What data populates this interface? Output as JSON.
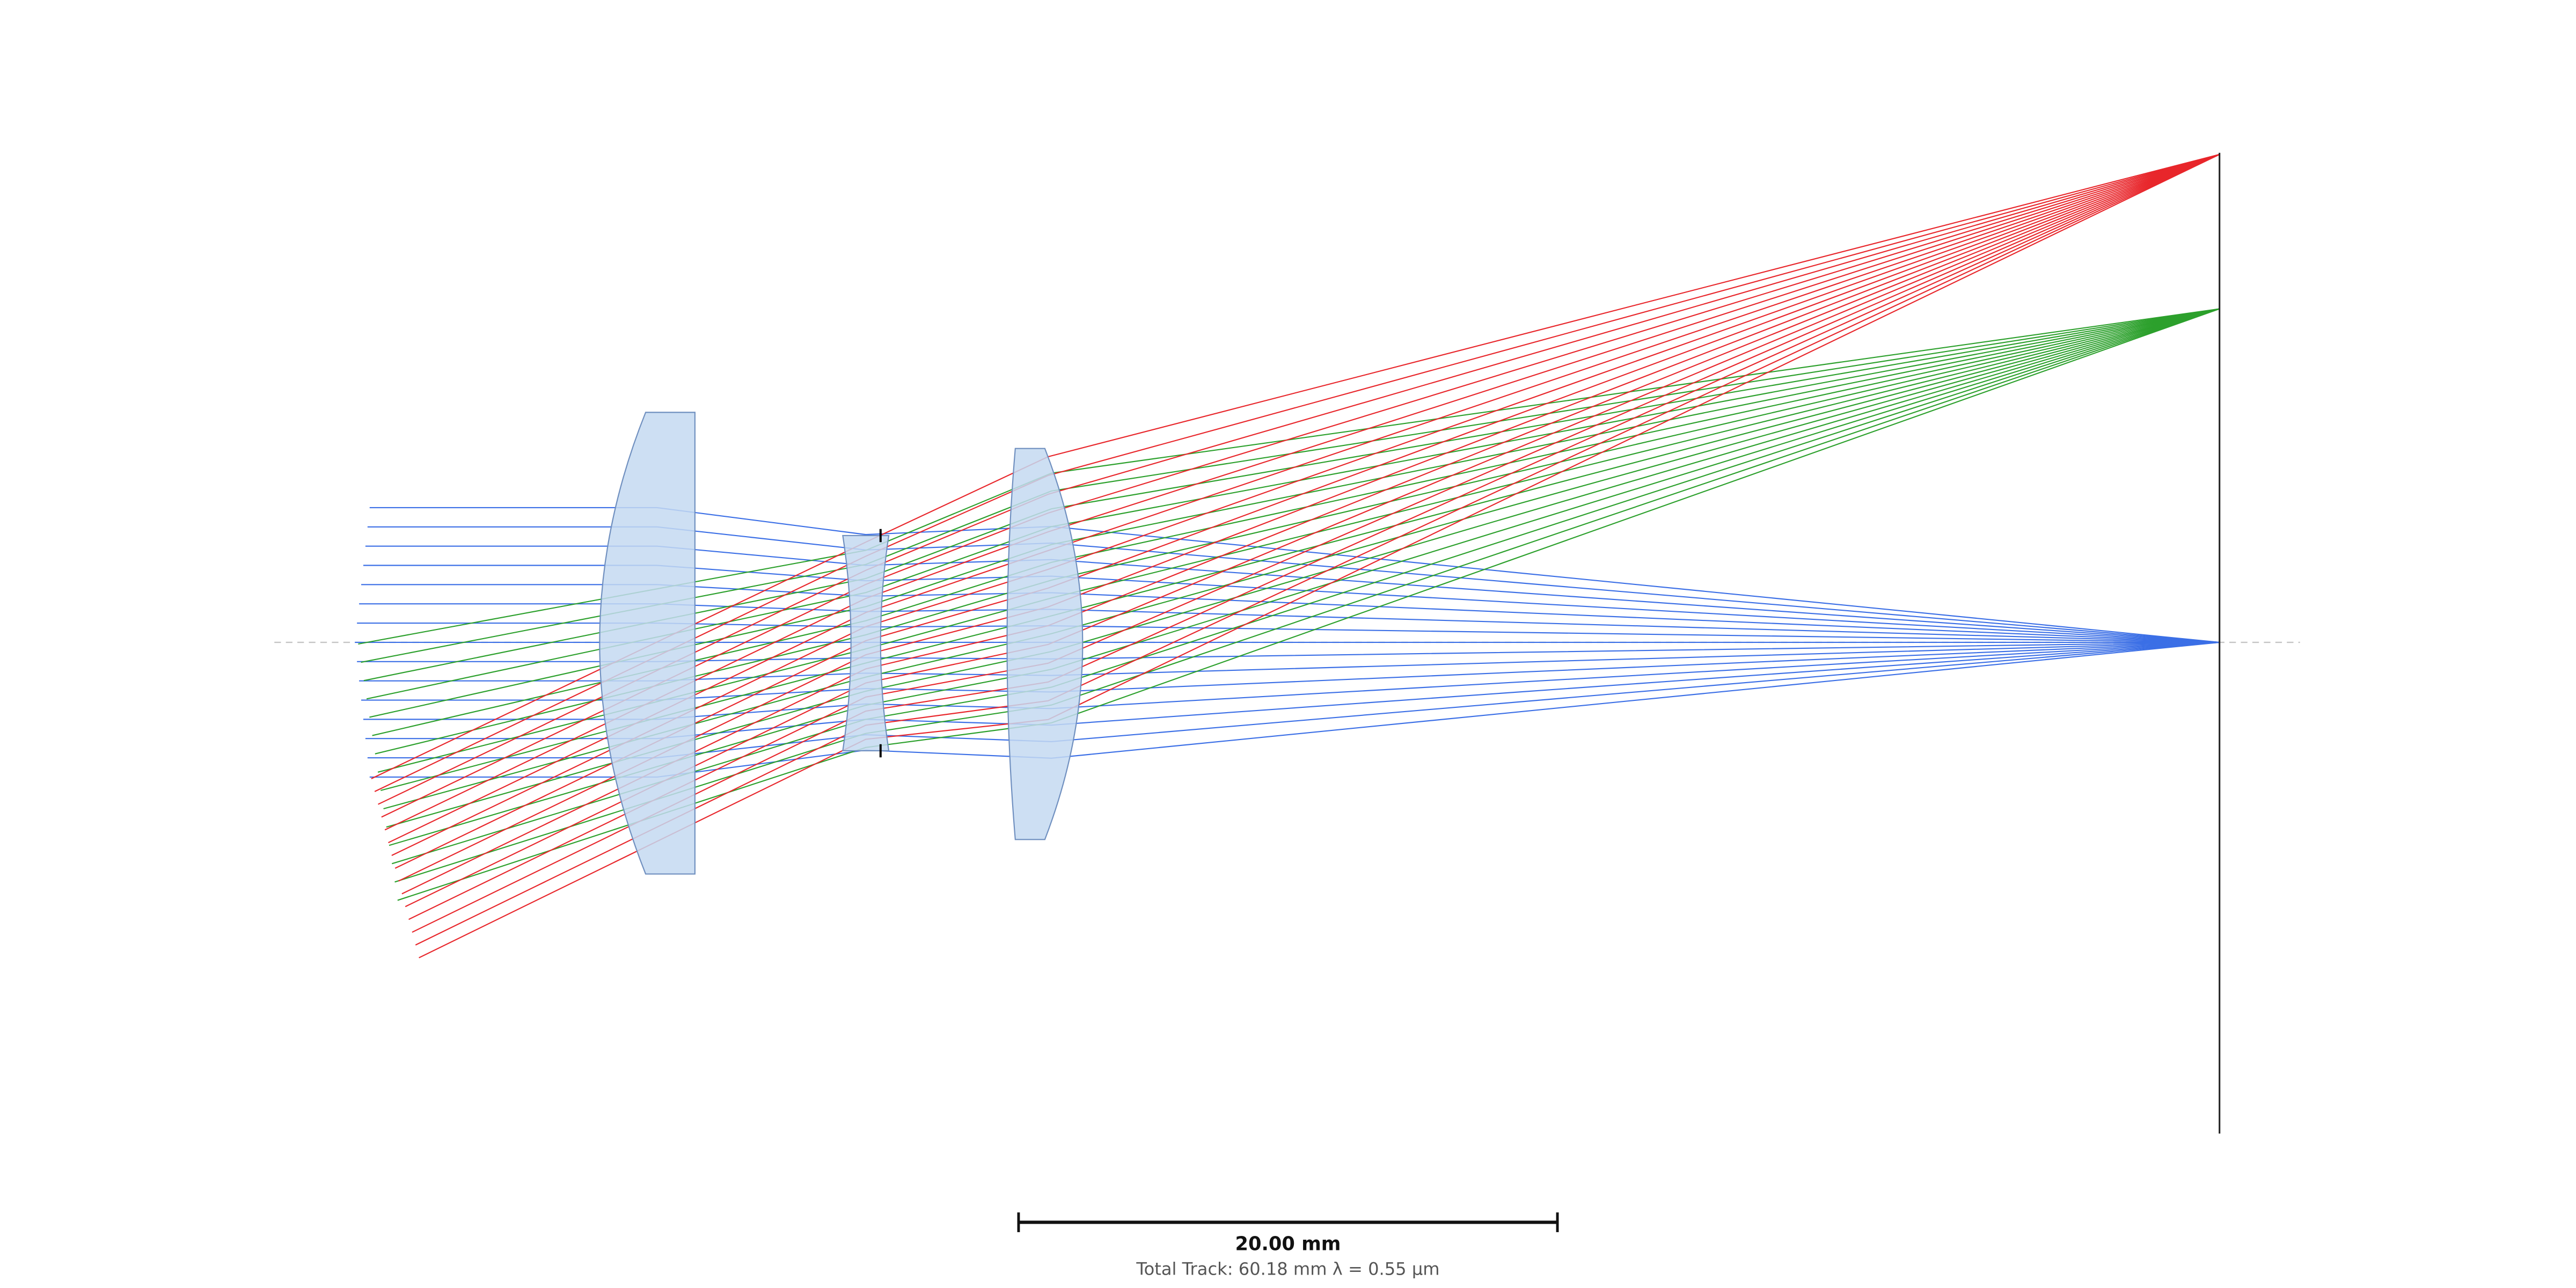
{
  "scale_bar": {
    "label": "20.00 mm"
  },
  "caption": "Total Track: 60.18 mm λ = 0.55 μm"
}
